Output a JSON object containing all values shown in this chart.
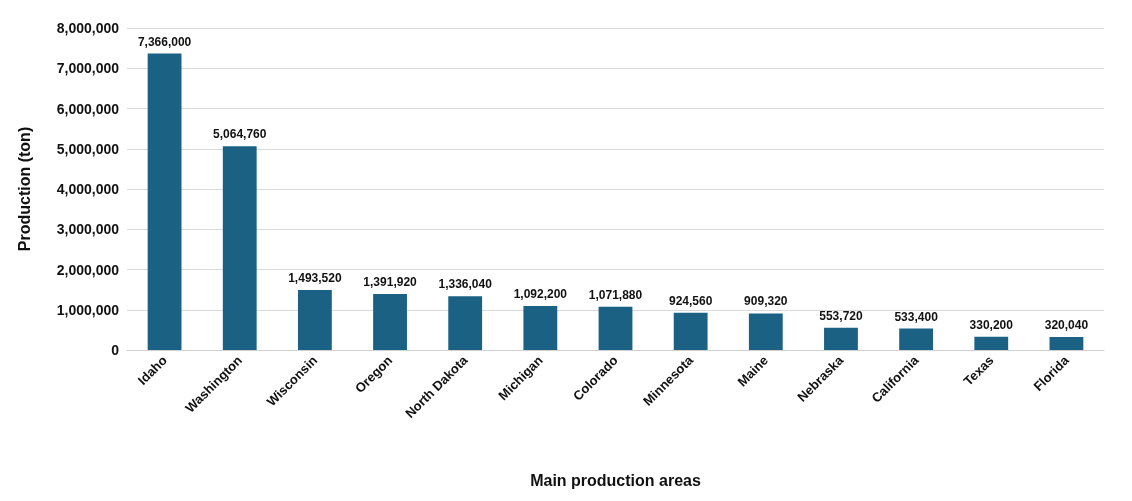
{
  "chart_data": {
    "type": "bar",
    "xlabel": "Main production areas",
    "ylabel": "Production (ton)",
    "categories": [
      "Idaho",
      "Washington",
      "Wisconsin",
      "Oregon",
      "North Dakota",
      "Michigan",
      "Colorado",
      "Minnesota",
      "Maine",
      "Nebraska",
      "California",
      "Texas",
      "Florida"
    ],
    "values": [
      7366000,
      5064760,
      1493520,
      1391920,
      1336040,
      1092200,
      1071880,
      924560,
      909320,
      553720,
      533400,
      330200,
      320040
    ],
    "value_labels": [
      "7,366,000",
      "5,064,760",
      "1,493,520",
      "1,391,920",
      "1,336,040",
      "1,092,200",
      "1,071,880",
      "924,560",
      "909,320",
      "553,720",
      "533,400",
      "330,200",
      "320,040"
    ],
    "color": "#1a6184",
    "ylim": [
      0,
      8000000
    ],
    "yticks": [
      0,
      {
        "value": 1000000,
        "label": "1,000,000"
      },
      {
        "value": 2000000,
        "label": "2,000,000"
      },
      {
        "value": 3000000,
        "label": "3,000,000"
      },
      {
        "value": 4000000,
        "label": "4,000,000"
      },
      {
        "value": 5000000,
        "label": "5,000,000"
      },
      {
        "value": 6000000,
        "label": "6,000,000"
      },
      {
        "value": 7000000,
        "label": "7,000,000"
      },
      {
        "value": 8000000,
        "label": "8,000,000"
      }
    ],
    "grid": "y"
  }
}
